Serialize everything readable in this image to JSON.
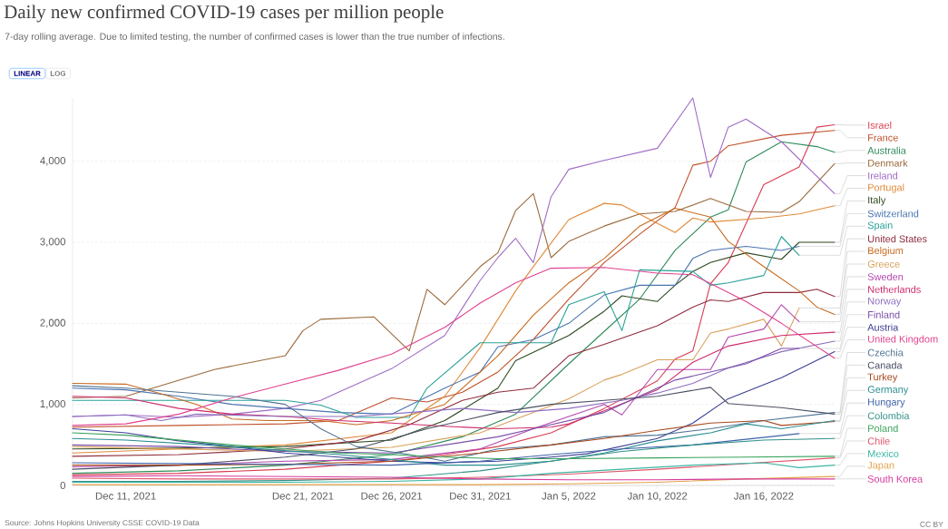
{
  "chart_data": {
    "type": "line",
    "title": "Daily new confirmed COVID-19 cases per million people",
    "subtitle": "7-day rolling average. Due to limited testing, the number of confirmed cases is lower than the true number of infections.",
    "annotations": [
      "LINEAR",
      "LOG",
      "Source: Johns Hopkins University CSSE COVID-19 Data",
      "CC BY"
    ],
    "xlim": [
      "2021-12-08",
      "2022-01-20"
    ],
    "xticks": [
      {
        "value": "2021-12-11",
        "label": "Dec 11, 2021"
      },
      {
        "value": "2021-12-21",
        "label": "Dec 21, 2021"
      },
      {
        "value": "2021-12-26",
        "label": "Dec 26, 2021"
      },
      {
        "value": "2021-12-31",
        "label": "Dec 31, 2021"
      },
      {
        "value": "2022-01-05",
        "label": "Jan 5, 2022"
      },
      {
        "value": "2022-01-10",
        "label": "Jan 10, 2022"
      },
      {
        "value": "2022-01-16",
        "label": "Jan 16, 2022"
      }
    ],
    "yticks": [
      0,
      {
        "value": 1000,
        "label": "1,000"
      },
      {
        "value": 2000,
        "label": "2,000"
      },
      {
        "value": 3000,
        "label": "3,000"
      },
      {
        "value": 4000,
        "label": "4,000"
      }
    ],
    "ylim": [
      0,
      4780
    ],
    "grid": "y",
    "legend": "right",
    "series": [
      {
        "name": "Israel",
        "color": "#d73c50",
        "x": [
          "2021-12-08",
          "2021-12-14",
          "2021-12-20",
          "2021-12-26",
          "2021-12-29",
          "2022-01-01",
          "2022-01-04",
          "2022-01-07",
          "2022-01-10",
          "2022-01-11",
          "2022-01-12",
          "2022-01-13",
          "2022-01-14",
          "2022-01-16",
          "2022-01-18",
          "2022-01-19",
          "2022-01-20"
        ],
        "values": [
          130,
          150,
          200,
          300,
          380,
          480,
          650,
          950,
          1290,
          1560,
          1660,
          2490,
          2750,
          3710,
          3930,
          4420,
          4450
        ]
      },
      {
        "name": "France",
        "color": "#c0502a",
        "x": [
          "2021-12-08",
          "2021-12-14",
          "2021-12-20",
          "2021-12-23",
          "2021-12-26",
          "2021-12-28",
          "2021-12-30",
          "2022-01-01",
          "2022-01-03",
          "2022-01-05",
          "2022-01-07",
          "2022-01-09",
          "2022-01-11",
          "2022-01-12",
          "2022-01-13",
          "2022-01-14",
          "2022-01-17",
          "2022-01-20"
        ],
        "values": [
          720,
          740,
          760,
          800,
          1080,
          1030,
          1150,
          1400,
          1800,
          2300,
          2750,
          3100,
          3430,
          3950,
          4000,
          4190,
          4320,
          4380
        ]
      },
      {
        "name": "Australia",
        "color": "#2e8a59",
        "x": [
          "2021-12-08",
          "2021-12-14",
          "2021-12-20",
          "2021-12-26",
          "2021-12-30",
          "2022-01-02",
          "2022-01-05",
          "2022-01-07",
          "2022-01-09",
          "2022-01-11",
          "2022-01-13",
          "2022-01-14",
          "2022-01-15",
          "2022-01-17",
          "2022-01-19",
          "2022-01-20"
        ],
        "values": [
          150,
          180,
          250,
          380,
          600,
          880,
          1500,
          1900,
          2300,
          2900,
          3310,
          3400,
          3990,
          4240,
          4180,
          4110
        ]
      },
      {
        "name": "Denmark",
        "color": "#9a6a3c",
        "x": [
          "2021-12-08",
          "2021-12-11",
          "2021-12-16",
          "2021-12-20",
          "2021-12-21",
          "2021-12-22",
          "2021-12-25",
          "2021-12-27",
          "2021-12-28",
          "2021-12-29",
          "2021-12-31",
          "2022-01-01",
          "2022-01-02",
          "2022-01-03",
          "2022-01-04",
          "2022-01-05",
          "2022-01-07",
          "2022-01-09",
          "2022-01-11",
          "2022-01-13",
          "2022-01-15",
          "2022-01-17",
          "2022-01-18",
          "2022-01-20"
        ],
        "values": [
          1080,
          1100,
          1430,
          1600,
          1910,
          2050,
          2080,
          1660,
          2420,
          2230,
          2700,
          2870,
          3390,
          3600,
          2810,
          3010,
          3200,
          3350,
          3380,
          3540,
          3380,
          3370,
          3500,
          3970
        ]
      },
      {
        "name": "Ireland",
        "color": "#a06cc4",
        "x": [
          "2021-12-08",
          "2021-12-11",
          "2021-12-14",
          "2021-12-17",
          "2021-12-20",
          "2021-12-22",
          "2021-12-23",
          "2021-12-26",
          "2021-12-29",
          "2021-12-31",
          "2022-01-01",
          "2022-01-02",
          "2022-01-03",
          "2022-01-04",
          "2022-01-05",
          "2022-01-07",
          "2022-01-10",
          "2022-01-12",
          "2022-01-13",
          "2022-01-14",
          "2022-01-15",
          "2022-01-17",
          "2022-01-20"
        ],
        "values": [
          850,
          870,
          840,
          880,
          950,
          1050,
          1150,
          1440,
          1850,
          2530,
          2810,
          3050,
          2750,
          3560,
          3900,
          4010,
          4160,
          4780,
          3800,
          4420,
          4520,
          4240,
          3600
        ]
      },
      {
        "name": "Portugal",
        "color": "#e08a3a",
        "x": [
          "2021-12-08",
          "2021-12-14",
          "2021-12-20",
          "2021-12-26",
          "2021-12-29",
          "2021-12-31",
          "2022-01-02",
          "2022-01-03",
          "2022-01-05",
          "2022-01-07",
          "2022-01-08",
          "2022-01-11",
          "2022-01-12",
          "2022-01-13",
          "2022-01-16",
          "2022-01-18",
          "2022-01-20"
        ],
        "values": [
          400,
          450,
          500,
          650,
          1100,
          1700,
          2400,
          2700,
          3280,
          3480,
          3460,
          3120,
          3300,
          3250,
          3300,
          3350,
          3450
        ]
      },
      {
        "name": "Italy",
        "color": "#2f4a20",
        "x": [
          "2021-12-08",
          "2021-12-14",
          "2021-12-20",
          "2021-12-26",
          "2021-12-29",
          "2022-01-01",
          "2022-01-02",
          "2022-01-05",
          "2022-01-07",
          "2022-01-08",
          "2022-01-10",
          "2022-01-11",
          "2022-01-12",
          "2022-01-13",
          "2022-01-15",
          "2022-01-17",
          "2022-01-18",
          "2022-01-20"
        ],
        "values": [
          450,
          460,
          480,
          560,
          800,
          1200,
          1540,
          1850,
          2150,
          2340,
          2270,
          2470,
          2640,
          2750,
          2870,
          2790,
          3000,
          3000
        ]
      },
      {
        "name": "Switzerland",
        "color": "#4a74b0",
        "x": [
          "2021-12-08",
          "2021-12-11",
          "2021-12-14",
          "2021-12-17",
          "2021-12-20",
          "2021-12-23",
          "2021-12-26",
          "2021-12-29",
          "2021-12-31",
          "2022-01-01",
          "2022-01-03",
          "2022-01-05",
          "2022-01-07",
          "2022-01-09",
          "2022-01-11",
          "2022-01-12",
          "2022-01-13",
          "2022-01-15",
          "2022-01-17",
          "2022-01-18"
        ],
        "values": [
          1200,
          1180,
          1100,
          1000,
          950,
          900,
          880,
          1200,
          1400,
          1710,
          1800,
          2000,
          2350,
          2470,
          2470,
          2800,
          2900,
          2950,
          2900,
          2950
        ]
      },
      {
        "name": "Spain",
        "color": "#2aa198",
        "x": [
          "2021-12-08",
          "2021-12-11",
          "2021-12-17",
          "2021-12-20",
          "2021-12-22",
          "2021-12-24",
          "2021-12-27",
          "2021-12-28",
          "2021-12-31",
          "2022-01-04",
          "2022-01-05",
          "2022-01-07",
          "2022-01-08",
          "2022-01-09",
          "2022-01-12",
          "2022-01-13",
          "2022-01-14",
          "2022-01-16",
          "2022-01-17",
          "2022-01-18"
        ],
        "values": [
          1050,
          1050,
          1050,
          1050,
          990,
          840,
          840,
          1200,
          1760,
          1760,
          2230,
          2390,
          1910,
          2660,
          2640,
          2470,
          2500,
          2590,
          3070,
          2840
        ]
      },
      {
        "name": "United States",
        "color": "#8e2d3c",
        "x": [
          "2021-12-08",
          "2021-12-14",
          "2021-12-20",
          "2021-12-24",
          "2021-12-27",
          "2021-12-30",
          "2022-01-01",
          "2022-01-03",
          "2022-01-05",
          "2022-01-07",
          "2022-01-10",
          "2022-01-12",
          "2022-01-13",
          "2022-01-14",
          "2022-01-16",
          "2022-01-18",
          "2022-01-19",
          "2022-01-20"
        ],
        "values": [
          360,
          380,
          450,
          550,
          750,
          1050,
          1150,
          1200,
          1600,
          1740,
          1970,
          2200,
          2290,
          2270,
          2380,
          2380,
          2420,
          2330
        ]
      },
      {
        "name": "Belgium",
        "color": "#c8691e",
        "x": [
          "2021-12-08",
          "2021-12-11",
          "2021-12-13",
          "2021-12-15",
          "2021-12-17",
          "2021-12-19",
          "2021-12-22",
          "2021-12-24",
          "2021-12-26",
          "2021-12-29",
          "2022-01-01",
          "2022-01-03",
          "2022-01-05",
          "2022-01-07",
          "2022-01-09",
          "2022-01-11",
          "2022-01-13",
          "2022-01-14",
          "2022-01-16",
          "2022-01-18",
          "2022-01-19",
          "2022-01-20"
        ],
        "values": [
          1260,
          1250,
          1130,
          1000,
          820,
          800,
          800,
          750,
          800,
          1000,
          1600,
          2100,
          2500,
          2800,
          3200,
          3420,
          3310,
          3010,
          2700,
          2400,
          2200,
          2110
        ]
      },
      {
        "name": "Greece",
        "color": "#d9a15c",
        "x": [
          "2021-12-08",
          "2021-12-14",
          "2021-12-20",
          "2021-12-26",
          "2021-12-31",
          "2022-01-03",
          "2022-01-05",
          "2022-01-07",
          "2022-01-08",
          "2022-01-10",
          "2022-01-12",
          "2022-01-13",
          "2022-01-14",
          "2022-01-16",
          "2022-01-17",
          "2022-01-18"
        ],
        "values": [
          480,
          450,
          420,
          470,
          650,
          900,
          1070,
          1300,
          1370,
          1550,
          1550,
          1880,
          1930,
          2050,
          1720,
          2190
        ]
      },
      {
        "name": "Sweden",
        "color": "#b447ae",
        "x": [
          "2021-12-08",
          "2021-12-14",
          "2021-12-20",
          "2021-12-26",
          "2021-12-31",
          "2022-01-03",
          "2022-01-05",
          "2022-01-07",
          "2022-01-08",
          "2022-01-10",
          "2022-01-13",
          "2022-01-14",
          "2022-01-16",
          "2022-01-17",
          "2022-01-18"
        ],
        "values": [
          230,
          250,
          300,
          320,
          450,
          700,
          850,
          1000,
          870,
          1430,
          1430,
          1830,
          1930,
          2230,
          2020
        ]
      },
      {
        "name": "Netherlands",
        "color": "#cf2a6a",
        "x": [
          "2021-12-08",
          "2021-12-11",
          "2021-12-14",
          "2021-12-17",
          "2021-12-20",
          "2021-12-23",
          "2021-12-26",
          "2021-12-29",
          "2022-01-01",
          "2022-01-04",
          "2022-01-05",
          "2022-01-07",
          "2022-01-10",
          "2022-01-12",
          "2022-01-14",
          "2022-01-17",
          "2022-01-20"
        ],
        "values": [
          1100,
          1080,
          950,
          880,
          850,
          800,
          770,
          730,
          700,
          720,
          760,
          920,
          1180,
          1520,
          1720,
          1850,
          1890
        ]
      },
      {
        "name": "Norway",
        "color": "#8e6fc0",
        "x": [
          "2021-12-08",
          "2021-12-11",
          "2021-12-13",
          "2021-12-15",
          "2021-12-20",
          "2021-12-24",
          "2021-12-27",
          "2021-12-30",
          "2022-01-02",
          "2022-01-05",
          "2022-01-08",
          "2022-01-10",
          "2022-01-12",
          "2022-01-14",
          "2022-01-17",
          "2022-01-20"
        ],
        "values": [
          850,
          870,
          800,
          880,
          850,
          850,
          900,
          950,
          900,
          950,
          1050,
          1140,
          1260,
          1450,
          1650,
          1780
        ]
      },
      {
        "name": "Finland",
        "color": "#7a4fa8",
        "x": [
          "2021-12-08",
          "2021-12-14",
          "2021-12-20",
          "2021-12-26",
          "2021-12-29",
          "2022-01-01",
          "2022-01-03",
          "2022-01-05",
          "2022-01-07",
          "2022-01-09",
          "2022-01-11",
          "2022-01-13",
          "2022-01-15",
          "2022-01-17",
          "2022-01-18"
        ],
        "values": [
          500,
          480,
          420,
          400,
          500,
          600,
          700,
          800,
          900,
          1100,
          1300,
          1400,
          1500,
          1690,
          1690
        ]
      },
      {
        "name": "Austria",
        "color": "#3b3f92",
        "x": [
          "2021-12-08",
          "2021-12-11",
          "2021-12-14",
          "2021-12-17",
          "2021-12-20",
          "2021-12-23",
          "2021-12-26",
          "2021-12-29",
          "2022-01-01",
          "2022-01-04",
          "2022-01-06",
          "2022-01-10",
          "2022-01-12",
          "2022-01-14",
          "2022-01-17",
          "2022-01-20"
        ],
        "values": [
          700,
          650,
          550,
          480,
          400,
          350,
          300,
          280,
          300,
          350,
          390,
          580,
          770,
          1070,
          1330,
          1650
        ]
      },
      {
        "name": "United Kingdom",
        "color": "#e0438f",
        "x": [
          "2021-12-08",
          "2021-12-11",
          "2021-12-14",
          "2021-12-17",
          "2021-12-20",
          "2021-12-23",
          "2021-12-26",
          "2021-12-29",
          "2021-12-31",
          "2022-01-02",
          "2022-01-04",
          "2022-01-07",
          "2022-01-10",
          "2022-01-12",
          "2022-01-13",
          "2022-01-15",
          "2022-01-17",
          "2022-01-20"
        ],
        "values": [
          740,
          760,
          880,
          1080,
          1250,
          1420,
          1620,
          1950,
          2250,
          2500,
          2680,
          2690,
          2620,
          2600,
          2490,
          2270,
          2000,
          1570
        ]
      },
      {
        "name": "Czechia",
        "color": "#4f7394",
        "x": [
          "2021-12-08",
          "2021-12-11",
          "2021-12-14",
          "2021-12-17",
          "2021-12-20",
          "2021-12-22",
          "2021-12-24",
          "2021-12-27",
          "2021-12-29",
          "2022-01-01",
          "2022-01-04",
          "2022-01-07",
          "2022-01-10",
          "2022-01-13",
          "2022-01-16",
          "2022-01-20"
        ],
        "values": [
          1230,
          1200,
          1150,
          1100,
          1000,
          700,
          480,
          380,
          300,
          450,
          500,
          600,
          620,
          700,
          800,
          900
        ]
      },
      {
        "name": "Canada",
        "color": "#4b4f63",
        "x": [
          "2021-12-08",
          "2021-12-14",
          "2021-12-20",
          "2021-12-24",
          "2021-12-28",
          "2022-01-01",
          "2022-01-04",
          "2022-01-07",
          "2022-01-10",
          "2022-01-13",
          "2022-01-14",
          "2022-01-17",
          "2022-01-20"
        ],
        "values": [
          200,
          250,
          350,
          450,
          700,
          900,
          1000,
          1050,
          1100,
          1210,
          1010,
          960,
          880
        ]
      },
      {
        "name": "Turkey",
        "color": "#a8491f",
        "x": [
          "2021-12-08",
          "2021-12-14",
          "2021-12-20",
          "2021-12-26",
          "2021-12-31",
          "2022-01-04",
          "2022-01-07",
          "2022-01-10",
          "2022-01-13",
          "2022-01-16",
          "2022-01-17",
          "2022-01-20"
        ],
        "values": [
          250,
          250,
          260,
          300,
          400,
          500,
          580,
          680,
          770,
          800,
          740,
          790
        ]
      },
      {
        "name": "Germany",
        "color": "#2b8e91",
        "x": [
          "2021-12-08",
          "2021-12-11",
          "2021-12-14",
          "2021-12-17",
          "2021-12-20",
          "2021-12-23",
          "2021-12-26",
          "2021-12-29",
          "2022-01-01",
          "2022-01-04",
          "2022-01-07",
          "2022-01-10",
          "2022-01-13",
          "2022-01-15",
          "2022-01-17",
          "2022-01-20"
        ],
        "values": [
          580,
          560,
          520,
          480,
          430,
          380,
          320,
          250,
          250,
          300,
          400,
          550,
          650,
          760,
          700,
          800
        ]
      },
      {
        "name": "Hungary",
        "color": "#3e62a8",
        "x": [
          "2021-12-08",
          "2021-12-14",
          "2021-12-20",
          "2021-12-26",
          "2021-12-31",
          "2022-01-04",
          "2022-01-08",
          "2022-01-12",
          "2022-01-15",
          "2022-01-18"
        ],
        "values": [
          280,
          270,
          260,
          250,
          300,
          380,
          450,
          500,
          570,
          640
        ]
      },
      {
        "name": "Colombia",
        "color": "#34918a",
        "x": [
          "2021-12-08",
          "2021-12-14",
          "2021-12-20",
          "2021-12-26",
          "2021-12-31",
          "2022-01-04",
          "2022-01-08",
          "2022-01-12",
          "2022-01-16",
          "2022-01-20"
        ],
        "values": [
          50,
          50,
          60,
          90,
          180,
          300,
          420,
          500,
          560,
          580
        ]
      },
      {
        "name": "Poland",
        "color": "#3aa35c",
        "x": [
          "2021-12-08",
          "2021-12-11",
          "2021-12-14",
          "2021-12-17",
          "2021-12-20",
          "2021-12-23",
          "2021-12-26",
          "2021-12-29",
          "2022-01-01",
          "2022-01-05",
          "2022-01-10",
          "2022-01-15",
          "2022-01-20"
        ],
        "values": [
          650,
          620,
          560,
          500,
          450,
          400,
          380,
          350,
          330,
          330,
          340,
          350,
          360
        ]
      },
      {
        "name": "Chile",
        "color": "#e0566a",
        "x": [
          "2021-12-08",
          "2021-12-14",
          "2021-12-20",
          "2021-12-26",
          "2021-12-31",
          "2022-01-05",
          "2022-01-10",
          "2022-01-15",
          "2022-01-20"
        ],
        "values": [
          90,
          80,
          80,
          80,
          100,
          140,
          200,
          270,
          340
        ]
      },
      {
        "name": "Mexico",
        "color": "#3bb5a3",
        "x": [
          "2021-12-08",
          "2021-12-20",
          "2021-12-26",
          "2021-12-31",
          "2022-01-04",
          "2022-01-08",
          "2022-01-12",
          "2022-01-16",
          "2022-01-18",
          "2022-01-20"
        ],
        "values": [
          40,
          40,
          50,
          80,
          150,
          200,
          250,
          280,
          220,
          250
        ]
      },
      {
        "name": "Japan",
        "color": "#e3a04a",
        "x": [
          "2021-12-08",
          "2021-12-20",
          "2021-12-31",
          "2022-01-05",
          "2022-01-10",
          "2022-01-15",
          "2022-01-20"
        ],
        "values": [
          10,
          10,
          10,
          20,
          40,
          80,
          110
        ]
      },
      {
        "name": "South Korea",
        "color": "#d63a9c",
        "x": [
          "2021-12-08",
          "2021-12-14",
          "2021-12-20",
          "2021-12-26",
          "2021-12-31",
          "2022-01-05",
          "2022-01-10",
          "2022-01-15",
          "2022-01-20"
        ],
        "values": [
          110,
          120,
          110,
          100,
          80,
          70,
          70,
          80,
          80
        ]
      }
    ]
  }
}
